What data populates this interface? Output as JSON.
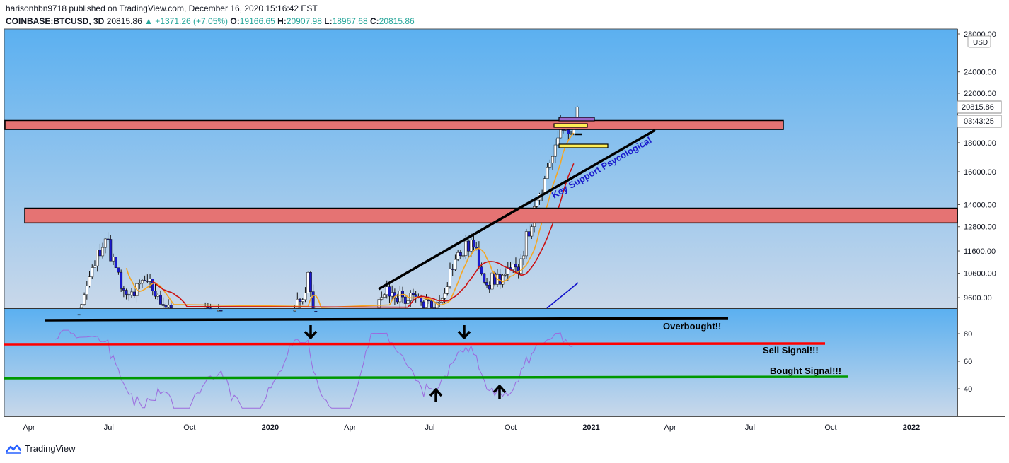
{
  "header": {
    "publisher_line": "harisonhbn9718 published on TradingView.com, December 16, 2020 15:16:42 EST",
    "symbol": "COINBASE:BTCUSD, 3D",
    "last": "20815.86",
    "change": "▲ +1371.26 (+7.05%)",
    "open_label": "O:",
    "open": "19166.65",
    "high_label": "H:",
    "high": "20907.98",
    "low_label": "L:",
    "low": "18967.68",
    "close_label": "C:",
    "close": "20815.86"
  },
  "footer": {
    "brand": "TradingView"
  },
  "colors": {
    "accent": "#2962ff",
    "up": "#26a69a",
    "resistance_zone": "#e57373",
    "sell_line": "#ff0000",
    "buy_line": "#009900",
    "rsi": "#9c6ade",
    "ma_fast": "#f5a623",
    "ma_slow": "#cc1111",
    "ma_long": "#1111cc"
  },
  "chart_data": [
    {
      "type": "candlestick",
      "title": "COINBASE:BTCUSD, 3D",
      "scale": "log",
      "ylim": [
        9200,
        28000
      ],
      "yticks": [
        "28000.00",
        "24000.00",
        "22000.00",
        "18000.00",
        "16000.00",
        "14000.00",
        "12800.00",
        "11600.00",
        "10600.00",
        "9600.00"
      ],
      "currency_badge": "USD",
      "price_badge": "20815.86",
      "timer_badge": "03:43:25",
      "x_ticks": [
        "Apr",
        "Jul",
        "Oct",
        "2020",
        "Apr",
        "Jul",
        "Oct",
        "2021",
        "Apr",
        "Jul",
        "Oct",
        "2022"
      ],
      "resistance_zones": [
        [
          19000,
          19700
        ],
        [
          13000,
          13800
        ]
      ],
      "trendline_annotation": "Key Support Psycological",
      "key_prices": [
        {
          "date": "2019-06-26",
          "high": 13800
        },
        {
          "date": "2019-10-26",
          "high": 10400
        },
        {
          "date": "2020-02-13",
          "high": 10500
        },
        {
          "date": "2020-08-17",
          "high": 12470
        },
        {
          "date": "2020-12-16",
          "open": 19166.65,
          "high": 20907.98,
          "low": 18967.68,
          "close": 20815.86
        }
      ]
    },
    {
      "type": "line",
      "title": "RSI",
      "yticks": [
        "80",
        "60",
        "40"
      ],
      "levels": [
        {
          "label": "Overbought!!",
          "value": 93
        },
        {
          "label": "Sell Signal!!!",
          "value": 73
        },
        {
          "label": "Bought Signal!!!",
          "value": 48
        }
      ]
    }
  ]
}
